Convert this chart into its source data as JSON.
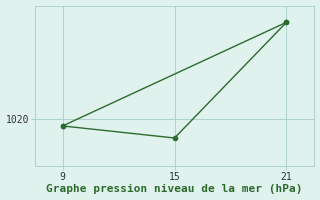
{
  "line1_x": [
    9,
    21
  ],
  "line1_y": [
    1019.0,
    1034.5
  ],
  "line2_x": [
    9,
    15,
    21
  ],
  "line2_y": [
    1019.0,
    1017.2,
    1034.5
  ],
  "line_color": "#2d6a2d",
  "marker": "o",
  "marker_size": 3,
  "xlim": [
    7.5,
    22.5
  ],
  "ylim": [
    1013.0,
    1037.0
  ],
  "xticks": [
    9,
    15,
    21
  ],
  "yticks": [
    1020
  ],
  "ytick_labels": [
    "1020"
  ],
  "xlabel": "Graphe pression niveau de la mer (hPa)",
  "bg_color": "#dff2ee",
  "grid_color": "#aaccc8",
  "xlabel_fontsize": 8,
  "tick_fontsize": 7,
  "figsize": [
    3.2,
    2.0
  ],
  "dpi": 100
}
